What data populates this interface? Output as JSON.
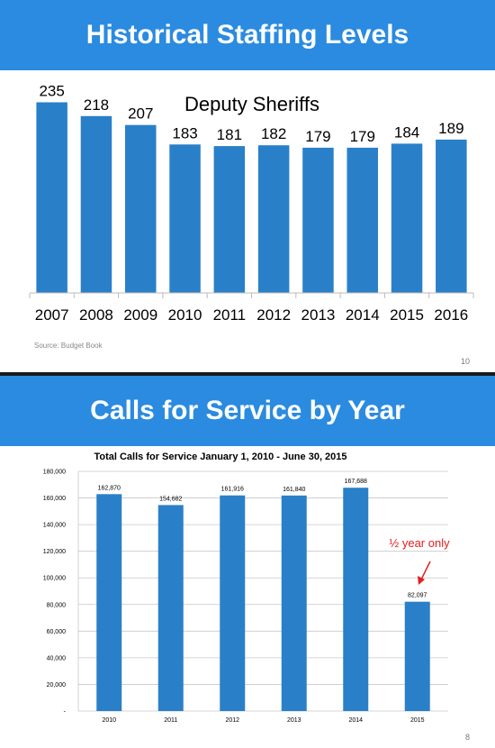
{
  "slides": [
    {
      "banner_title": "Historical Staffing Levels",
      "source": "Source: Budget Book",
      "page_number": "10"
    },
    {
      "banner_title": "Calls for Service by Year",
      "page_number": "8"
    }
  ],
  "colors": {
    "banner": "#2a8be0",
    "bar": "#2a80c8",
    "annotation": "#e02020"
  },
  "chart_data": [
    {
      "type": "bar",
      "title": "Deputy Sheriffs",
      "categories": [
        "2007",
        "2008",
        "2009",
        "2010",
        "2011",
        "2012",
        "2013",
        "2014",
        "2015",
        "2016"
      ],
      "values": [
        235,
        218,
        207,
        183,
        181,
        182,
        179,
        179,
        184,
        189
      ],
      "value_labels": [
        "235",
        "218",
        "207",
        "183",
        "181",
        "182",
        "179",
        "179",
        "184",
        "189"
      ],
      "ylim": [
        0,
        260
      ],
      "grid": false,
      "legend": "none"
    },
    {
      "type": "bar",
      "title": "Total Calls for Service January 1, 2010 - June 30, 2015",
      "categories": [
        "2010",
        "2011",
        "2012",
        "2013",
        "2014",
        "2015"
      ],
      "values": [
        162870,
        154682,
        161916,
        161840,
        167688,
        82097
      ],
      "value_labels": [
        "162,870",
        "154,682",
        "161,916",
        "161,840",
        "167,688",
        "82,097"
      ],
      "y_ticks": [
        0,
        20000,
        40000,
        60000,
        80000,
        100000,
        120000,
        140000,
        160000,
        180000
      ],
      "y_tick_labels": [
        "-",
        "20,000",
        "40,000",
        "60,000",
        "80,000",
        "100,000",
        "120,000",
        "140,000",
        "160,000",
        "180,000"
      ],
      "ylim": [
        0,
        180000
      ],
      "grid": true,
      "legend": "none",
      "annotation": "½ year only"
    }
  ]
}
